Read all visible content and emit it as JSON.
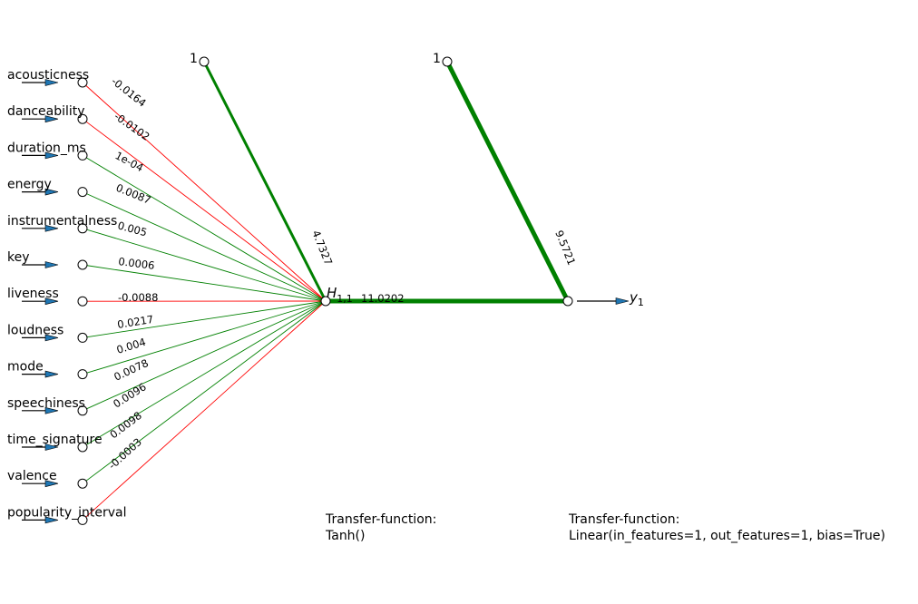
{
  "inputs": [
    {
      "label": "acousticness",
      "weight": "-0.0164",
      "sign": "neg"
    },
    {
      "label": "danceability",
      "weight": "-0.0102",
      "sign": "neg"
    },
    {
      "label": "duration_ms",
      "weight": "1e-04",
      "sign": "pos"
    },
    {
      "label": "energy",
      "weight": "0.0087",
      "sign": "pos"
    },
    {
      "label": "instrumentalness",
      "weight": "0.005",
      "sign": "pos"
    },
    {
      "label": "key",
      "weight": "0.0006",
      "sign": "pos"
    },
    {
      "label": "liveness",
      "weight": "-0.0088",
      "sign": "neg"
    },
    {
      "label": "loudness",
      "weight": "0.0217",
      "sign": "pos"
    },
    {
      "label": "mode",
      "weight": "0.004",
      "sign": "pos"
    },
    {
      "label": "speechiness",
      "weight": "0.0078",
      "sign": "pos"
    },
    {
      "label": "time_signature",
      "weight": "0.0096",
      "sign": "pos"
    },
    {
      "label": "valence",
      "weight": "0.0098",
      "sign": "pos"
    },
    {
      "label": "popularity_interval",
      "weight": "-0.0003",
      "sign": "neg"
    }
  ],
  "hidden": {
    "label_main": "H",
    "label_sub": "1,1"
  },
  "bias_hidden": {
    "label": "1",
    "weight": "4.7327"
  },
  "bias_output": {
    "label": "1",
    "weight": "9.5721"
  },
  "hidden_to_output": {
    "weight": "11.0202"
  },
  "output": {
    "label_main": "y",
    "label_sub": "1"
  },
  "transfer_hidden": {
    "title": "Transfer-function:",
    "value": "Tanh()"
  },
  "transfer_output": {
    "title": "Transfer-function:",
    "value": "Linear(in_features=1, out_features=1, bias=True)"
  },
  "colors": {
    "positive": "#008000",
    "negative": "#ff0000",
    "arrow_fill": "#1f77b4"
  }
}
